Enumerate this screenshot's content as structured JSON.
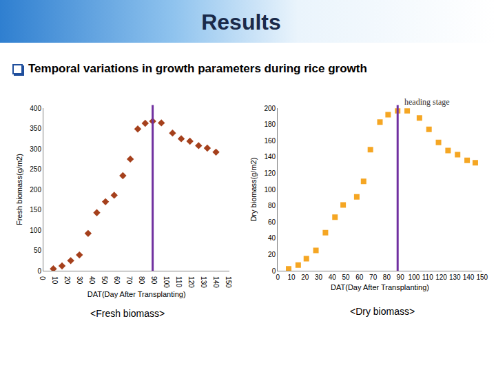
{
  "slide": {
    "title": "Results",
    "subtitle": "Temporal variations in growth parameters during rice growth"
  },
  "chart_data": [
    {
      "type": "scatter",
      "title": "<Fresh biomass>",
      "x_label": "DAT(Day After Transplanting)",
      "y_label": "Fresh biomass(g/m2)",
      "x": [
        8,
        15,
        22,
        29,
        36,
        43,
        50,
        57,
        64,
        70,
        76,
        82,
        88,
        95,
        104,
        111,
        118,
        125,
        132,
        139
      ],
      "series": [
        {
          "color": "#a5401c",
          "marker": "diamond",
          "values": [
            5,
            12,
            25,
            39,
            92,
            143,
            170,
            186,
            234,
            275,
            349,
            363,
            368,
            364,
            339,
            325,
            319,
            308,
            302,
            292
          ]
        }
      ],
      "xlim": [
        0,
        150
      ],
      "xticks": [
        0,
        10,
        20,
        30,
        40,
        50,
        60,
        70,
        80,
        90,
        100,
        110,
        120,
        130,
        140,
        150
      ],
      "ylim": [
        0,
        400
      ],
      "yticks": [
        0,
        50,
        100,
        150,
        200,
        250,
        300,
        350,
        400
      ],
      "grid": false,
      "reference_line": {
        "x": 88,
        "color": "#7030a0"
      }
    },
    {
      "type": "scatter",
      "title": "<Dry biomass>",
      "x_label": "DAT(Day After Transplanting)",
      "y_label": "Dry biomass(g/m2)",
      "x": [
        8,
        15,
        21,
        28,
        35,
        42,
        48,
        58,
        63,
        68,
        75,
        81,
        88,
        95,
        104,
        111,
        118,
        125,
        132,
        139,
        145
      ],
      "series": [
        {
          "color": "#f5a623",
          "marker": "square",
          "values": [
            2.5,
            7,
            15,
            25,
            47,
            66,
            81,
            91,
            110,
            149,
            183,
            192,
            197,
            197,
            188,
            174,
            158,
            148,
            143,
            136,
            133
          ]
        }
      ],
      "xlim": [
        0,
        150
      ],
      "xticks": [
        0,
        10,
        20,
        30,
        40,
        50,
        60,
        70,
        80,
        90,
        100,
        110,
        120,
        130,
        140,
        150
      ],
      "ylim": [
        0,
        200
      ],
      "yticks": [
        0,
        20,
        40,
        60,
        80,
        100,
        120,
        140,
        160,
        180,
        200
      ],
      "grid": false,
      "reference_line": {
        "x": 88,
        "color": "#7030a0",
        "label": "heading stage"
      }
    }
  ]
}
